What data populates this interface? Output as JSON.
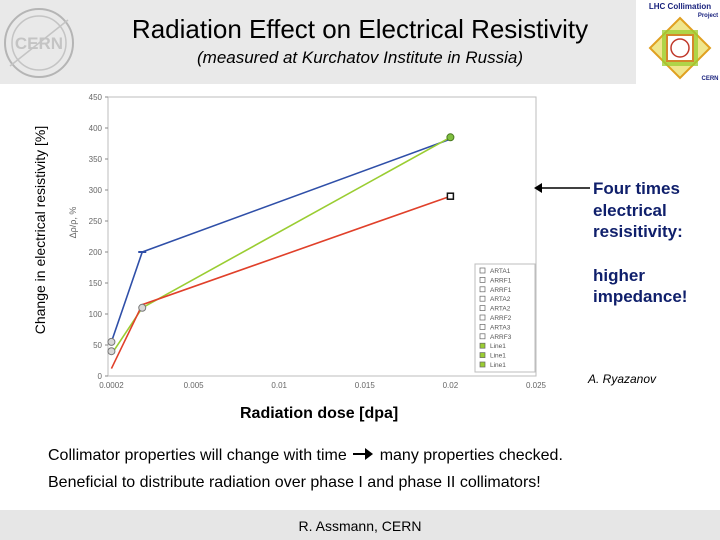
{
  "slide": {
    "title": "Radiation Effect on Electrical Resistivity",
    "subtitle": "(measured at Kurchatov Institute in Russia)",
    "outer_ylabel": "Change in electrical resistivity [%]",
    "outer_xlabel": "Radiation dose [dpa]",
    "annotation": {
      "line1": "Four times electrical resisitivity:",
      "line2": "higher impedance!"
    },
    "author": "A. Ryazanov",
    "text_line1": "Collimator properties will change with time",
    "text_line1_end": "many properties checked.",
    "text_line2": "Beneficial to distribute radiation over phase I and phase II collimators!",
    "footer": "R. Assmann, CERN",
    "logo_left": "CERN",
    "logo_right": {
      "line1": "LHC Collimation",
      "line2": "Project",
      "line3": "CERN"
    }
  },
  "chart_data": {
    "type": "line",
    "ylabel": "Δρ/ρ, %",
    "xlim": [
      0,
      0.025
    ],
    "ylim": [
      0,
      450
    ],
    "x_ticks": [
      "0.0002",
      "0.005",
      "0.01",
      "0.015",
      "0.02",
      "0.025"
    ],
    "y_ticks": [
      "0",
      "50",
      "100",
      "150",
      "200",
      "250",
      "300",
      "350",
      "400",
      "450"
    ],
    "grid": false,
    "legend": [
      "ARTA1",
      "ARRF1",
      "ARRF1",
      "ARTA2",
      "ARTA2",
      "ARRF2",
      "ARTA3",
      "ARRF3",
      "Line1",
      "Line1",
      "Line1"
    ],
    "legend_position": "bottom-right",
    "series": [
      {
        "color": "#2f4fa8",
        "x": [
          0.0002,
          0.002,
          0.02
        ],
        "y": [
          55,
          200,
          382
        ]
      },
      {
        "color": "#9acd32",
        "x": [
          0.0002,
          0.002,
          0.02
        ],
        "y": [
          35,
          110,
          385
        ]
      },
      {
        "color": "#e0402a",
        "x": [
          0.0002,
          0.002,
          0.02
        ],
        "y": [
          12,
          115,
          290
        ]
      }
    ],
    "markers": [
      {
        "x": 0.002,
        "y": 200,
        "symbol": "dash"
      },
      {
        "x": 0.002,
        "y": 110,
        "symbol": "circle"
      },
      {
        "x": 0.0002,
        "y": 55,
        "symbol": "circle"
      },
      {
        "x": 0.0002,
        "y": 40,
        "symbol": "circle"
      },
      {
        "x": 0.02,
        "y": 290,
        "symbol": "square"
      },
      {
        "x": 0.02,
        "y": 385,
        "symbol": "circle-green"
      }
    ]
  }
}
